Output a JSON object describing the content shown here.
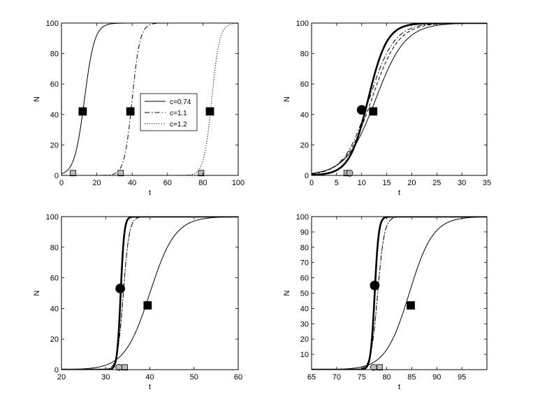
{
  "chart_data": [
    {
      "type": "line",
      "xlabel": "t",
      "ylabel": "N",
      "xlim": [
        0,
        100
      ],
      "ylim": [
        0,
        100
      ],
      "xticks": [
        0,
        20,
        40,
        60,
        80,
        100
      ],
      "yticks": [
        0,
        20,
        40,
        60,
        80,
        100
      ],
      "legend": {
        "position": "center",
        "entries": [
          "c=0.74",
          "c=1.1",
          "c=1.2"
        ]
      },
      "series": [
        {
          "name": "c=0.74",
          "style": "solid",
          "logistic": {
            "K": 100,
            "r": 0.35,
            "t0": 13
          }
        },
        {
          "name": "c=1.1",
          "style": "dashdot",
          "logistic": {
            "K": 100,
            "r": 0.45,
            "t0": 40
          }
        },
        {
          "name": "c=1.2",
          "style": "dotted",
          "logistic": {
            "K": 100,
            "r": 0.45,
            "t0": 85
          }
        }
      ],
      "markers": [
        {
          "shape": "square",
          "fill": "#000000",
          "x": 12,
          "y": 42
        },
        {
          "shape": "square",
          "fill": "#000000",
          "x": 39,
          "y": 42
        },
        {
          "shape": "square",
          "fill": "#000000",
          "x": 84,
          "y": 42
        },
        {
          "shape": "square",
          "fill": "#bbbbbb",
          "x": 6.5,
          "y": 1.5
        },
        {
          "shape": "square",
          "fill": "#bbbbbb",
          "x": 33.5,
          "y": 1.5
        },
        {
          "shape": "square",
          "fill": "#bbbbbb",
          "x": 79,
          "y": 1.5
        }
      ]
    },
    {
      "type": "line",
      "xlabel": "t",
      "ylabel": "N",
      "xlim": [
        0,
        35
      ],
      "ylim": [
        0,
        100
      ],
      "xticks": [
        0,
        5,
        10,
        15,
        20,
        25,
        30,
        35
      ],
      "yticks": [
        0,
        20,
        40,
        60,
        80,
        100
      ],
      "series": [
        {
          "style": "thick",
          "logistic": {
            "K": 100,
            "r": 0.53,
            "t0": 11.3
          }
        },
        {
          "style": "dashdot",
          "logistic": {
            "K": 100,
            "r": 0.4,
            "t0": 11.5
          }
        },
        {
          "style": "dashed",
          "logistic": {
            "K": 100,
            "r": 0.38,
            "t0": 12
          }
        },
        {
          "style": "solid",
          "logistic": {
            "K": 100,
            "r": 0.34,
            "t0": 12.8
          }
        }
      ],
      "markers": [
        {
          "shape": "circle",
          "fill": "#000000",
          "x": 10,
          "y": 43
        },
        {
          "shape": "square",
          "fill": "#000000",
          "x": 12.3,
          "y": 42
        },
        {
          "shape": "square",
          "fill": "#bbbbbb",
          "x": 7,
          "y": 1.5
        },
        {
          "shape": "circle",
          "fill": "#bbbbbb",
          "x": 7.6,
          "y": 1.5
        }
      ]
    },
    {
      "type": "line",
      "xlabel": "t",
      "ylabel": "N",
      "xlim": [
        20,
        60
      ],
      "ylim": [
        0,
        100
      ],
      "xticks": [
        20,
        30,
        40,
        50,
        60
      ],
      "yticks": [
        0,
        20,
        40,
        60,
        80,
        100
      ],
      "series": [
        {
          "style": "thick",
          "logistic": {
            "K": 100,
            "r": 2.5,
            "t0": 33.4
          }
        },
        {
          "style": "dashdot",
          "logistic": {
            "K": 100,
            "r": 1.5,
            "t0": 34
          }
        },
        {
          "style": "dotted",
          "logistic": {
            "K": 100,
            "r": 1.5,
            "t0": 34
          }
        },
        {
          "style": "solid",
          "logistic": {
            "K": 100,
            "r": 0.35,
            "t0": 40
          }
        }
      ],
      "markers": [
        {
          "shape": "circle",
          "fill": "#000000",
          "x": 33.3,
          "y": 53
        },
        {
          "shape": "square",
          "fill": "#000000",
          "x": 39.5,
          "y": 42
        },
        {
          "shape": "circle",
          "fill": "#bbbbbb",
          "x": 33,
          "y": 1.5
        },
        {
          "shape": "square",
          "fill": "#bbbbbb",
          "x": 34.3,
          "y": 1.5
        }
      ]
    },
    {
      "type": "line",
      "xlabel": "t",
      "ylabel": "N",
      "xlim": [
        65,
        100
      ],
      "ylim": [
        0,
        100
      ],
      "xticks": [
        65,
        70,
        75,
        80,
        85,
        90,
        95
      ],
      "yticks": [
        10,
        20,
        30,
        40,
        50,
        60,
        70,
        80,
        90,
        100
      ],
      "series": [
        {
          "style": "thick",
          "logistic": {
            "K": 100,
            "r": 2.5,
            "t0": 77.6
          }
        },
        {
          "style": "dashdot",
          "logistic": {
            "K": 100,
            "r": 1.5,
            "t0": 78.2
          }
        },
        {
          "style": "dotted",
          "logistic": {
            "K": 100,
            "r": 1.5,
            "t0": 78.2
          }
        },
        {
          "style": "solid",
          "logistic": {
            "K": 100,
            "r": 0.42,
            "t0": 84.5
          }
        }
      ],
      "markers": [
        {
          "shape": "circle",
          "fill": "#000000",
          "x": 77.6,
          "y": 55
        },
        {
          "shape": "square",
          "fill": "#000000",
          "x": 84.8,
          "y": 42
        },
        {
          "shape": "circle",
          "fill": "#bbbbbb",
          "x": 77.4,
          "y": 1.5
        },
        {
          "shape": "square",
          "fill": "#bbbbbb",
          "x": 78.6,
          "y": 1.5
        }
      ]
    }
  ]
}
